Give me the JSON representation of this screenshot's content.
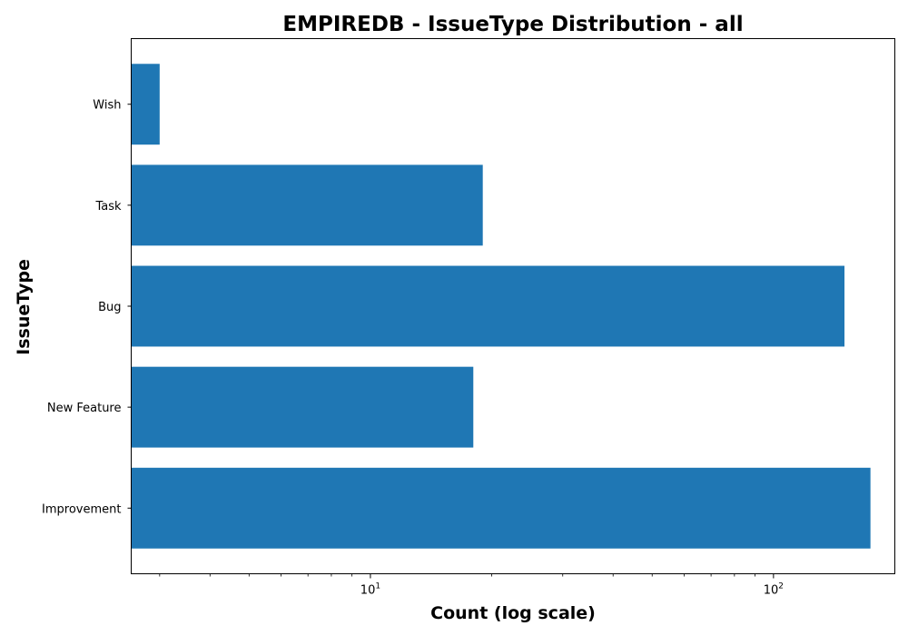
{
  "chart_data": {
    "type": "bar",
    "orientation": "horizontal",
    "title": "EMPIREDB - IssueType Distribution - all",
    "xlabel": "Count (log scale)",
    "ylabel": "IssueType",
    "x_scale": "log",
    "xlim": [
      2.55,
      200
    ],
    "x_ticks": [
      {
        "value": 10,
        "base": "10",
        "exp": "1"
      },
      {
        "value": 100,
        "base": "10",
        "exp": "2"
      }
    ],
    "categories": [
      "Improvement",
      "New Feature",
      "Bug",
      "Task",
      "Wish"
    ],
    "values": [
      174,
      18,
      150,
      19,
      3
    ],
    "bar_color": "#1f77b4",
    "grid": false,
    "legend": "none"
  }
}
